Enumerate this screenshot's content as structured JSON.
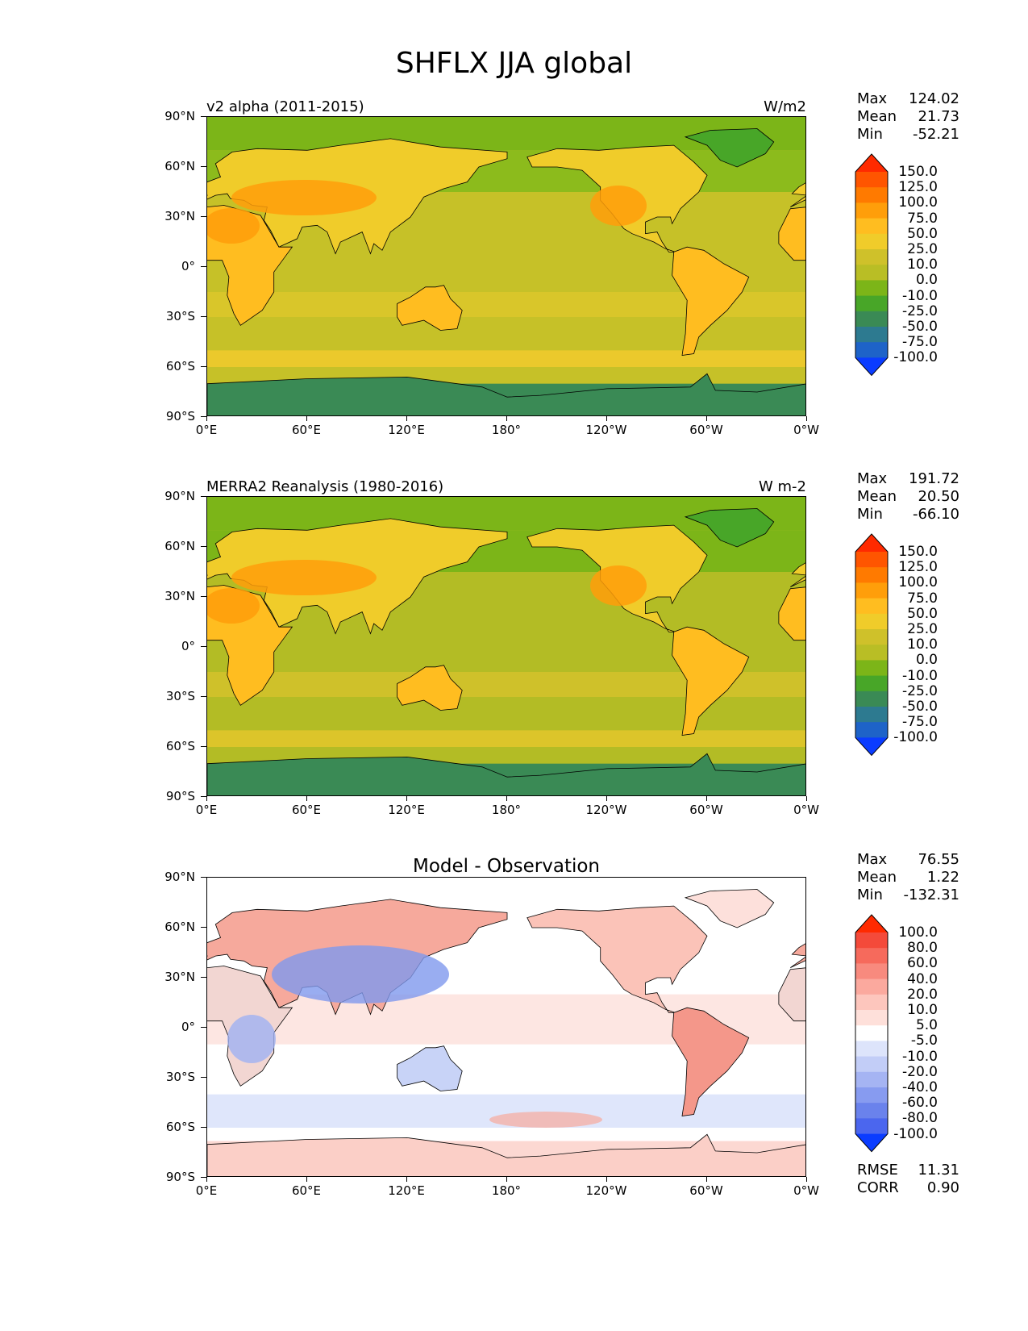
{
  "page_title": "SHFLX JJA global",
  "axes": {
    "lat_labels": [
      "90°N",
      "60°N",
      "30°N",
      "0°",
      "30°S",
      "60°S",
      "90°S"
    ],
    "lon_labels": [
      "0°E",
      "60°E",
      "120°E",
      "180°",
      "120°W",
      "60°W",
      "0°W"
    ]
  },
  "panels": [
    {
      "left_title": "v2 alpha (2011-2015)",
      "right_title": "W/m2",
      "center_title": "",
      "stats": {
        "max_label": "Max",
        "max": "124.02",
        "mean_label": "Mean",
        "mean": "21.73",
        "min_label": "Min",
        "min": "-52.21"
      },
      "colorbar": {
        "labels": [
          "150.0",
          "125.0",
          "100.0",
          "75.0",
          "50.0",
          "25.0",
          "10.0",
          "0.0",
          "-10.0",
          "-25.0",
          "-50.0",
          "-75.0",
          "-100.0"
        ],
        "colors": [
          "#ff2a00",
          "#ff5500",
          "#ff7a00",
          "#ff9e0a",
          "#ffbd20",
          "#f0cc2a",
          "#cfc12a",
          "#b9be25",
          "#7cb518",
          "#48a628",
          "#3a8a55",
          "#2d7a90",
          "#1e63c8",
          "#0a3cff"
        ]
      }
    },
    {
      "left_title": "MERRA2 Reanalysis (1980-2016)",
      "right_title": "W m-2",
      "center_title": "",
      "stats": {
        "max_label": "Max",
        "max": "191.72",
        "mean_label": "Mean",
        "mean": "20.50",
        "min_label": "Min",
        "min": "-66.10"
      },
      "colorbar": {
        "labels": [
          "150.0",
          "125.0",
          "100.0",
          "75.0",
          "50.0",
          "25.0",
          "10.0",
          "0.0",
          "-10.0",
          "-25.0",
          "-50.0",
          "-75.0",
          "-100.0"
        ],
        "colors": [
          "#ff2a00",
          "#ff5500",
          "#ff7a00",
          "#ff9e0a",
          "#ffbd20",
          "#f0cc2a",
          "#cfc12a",
          "#b9be25",
          "#7cb518",
          "#48a628",
          "#3a8a55",
          "#2d7a90",
          "#1e63c8",
          "#0a3cff"
        ]
      }
    },
    {
      "left_title": "",
      "right_title": "",
      "center_title": "Model - Observation",
      "stats": {
        "max_label": "Max",
        "max": "76.55",
        "mean_label": "Mean",
        "mean": "1.22",
        "min_label": "Min",
        "min": "-132.31"
      },
      "colorbar": {
        "labels": [
          "100.0",
          "80.0",
          "60.0",
          "40.0",
          "20.0",
          "10.0",
          "5.0",
          "-5.0",
          "-10.0",
          "-20.0",
          "-40.0",
          "-60.0",
          "-80.0",
          "-100.0"
        ],
        "colors": [
          "#ff2a00",
          "#f44a3a",
          "#f66a5c",
          "#f88a7e",
          "#fba99e",
          "#fdc6bd",
          "#fee0da",
          "#ffffff",
          "#dde4fb",
          "#c2cdf7",
          "#a5b4f3",
          "#879bf0",
          "#6a82ec",
          "#4b66ee",
          "#0a3cff"
        ]
      },
      "metrics": {
        "rmse_label": "RMSE",
        "rmse": "11.31",
        "corr_label": "CORR",
        "corr": "0.90"
      }
    }
  ],
  "chart_data": [
    {
      "type": "heatmap",
      "title": "v2 alpha (2011-2015)",
      "variable": "SHFLX JJA global",
      "units": "W/m2",
      "x_range": [
        0,
        360
      ],
      "y_range": [
        -90,
        90
      ],
      "stats": {
        "max": 124.02,
        "mean": 21.73,
        "min": -52.21
      },
      "levels": [
        -100,
        -75,
        -50,
        -25,
        -10,
        0,
        10,
        25,
        50,
        75,
        100,
        125,
        150
      ]
    },
    {
      "type": "heatmap",
      "title": "MERRA2 Reanalysis (1980-2016)",
      "variable": "SHFLX JJA global",
      "units": "W m-2",
      "x_range": [
        0,
        360
      ],
      "y_range": [
        -90,
        90
      ],
      "stats": {
        "max": 191.72,
        "mean": 20.5,
        "min": -66.1
      },
      "levels": [
        -100,
        -75,
        -50,
        -25,
        -10,
        0,
        10,
        25,
        50,
        75,
        100,
        125,
        150
      ]
    },
    {
      "type": "heatmap",
      "title": "Model - Observation",
      "x_range": [
        0,
        360
      ],
      "y_range": [
        -90,
        90
      ],
      "stats": {
        "max": 76.55,
        "mean": 1.22,
        "min": -132.31
      },
      "rmse": 11.31,
      "corr": 0.9,
      "levels": [
        -100,
        -80,
        -60,
        -40,
        -20,
        -10,
        -5,
        5,
        10,
        20,
        40,
        60,
        80,
        100
      ]
    }
  ]
}
